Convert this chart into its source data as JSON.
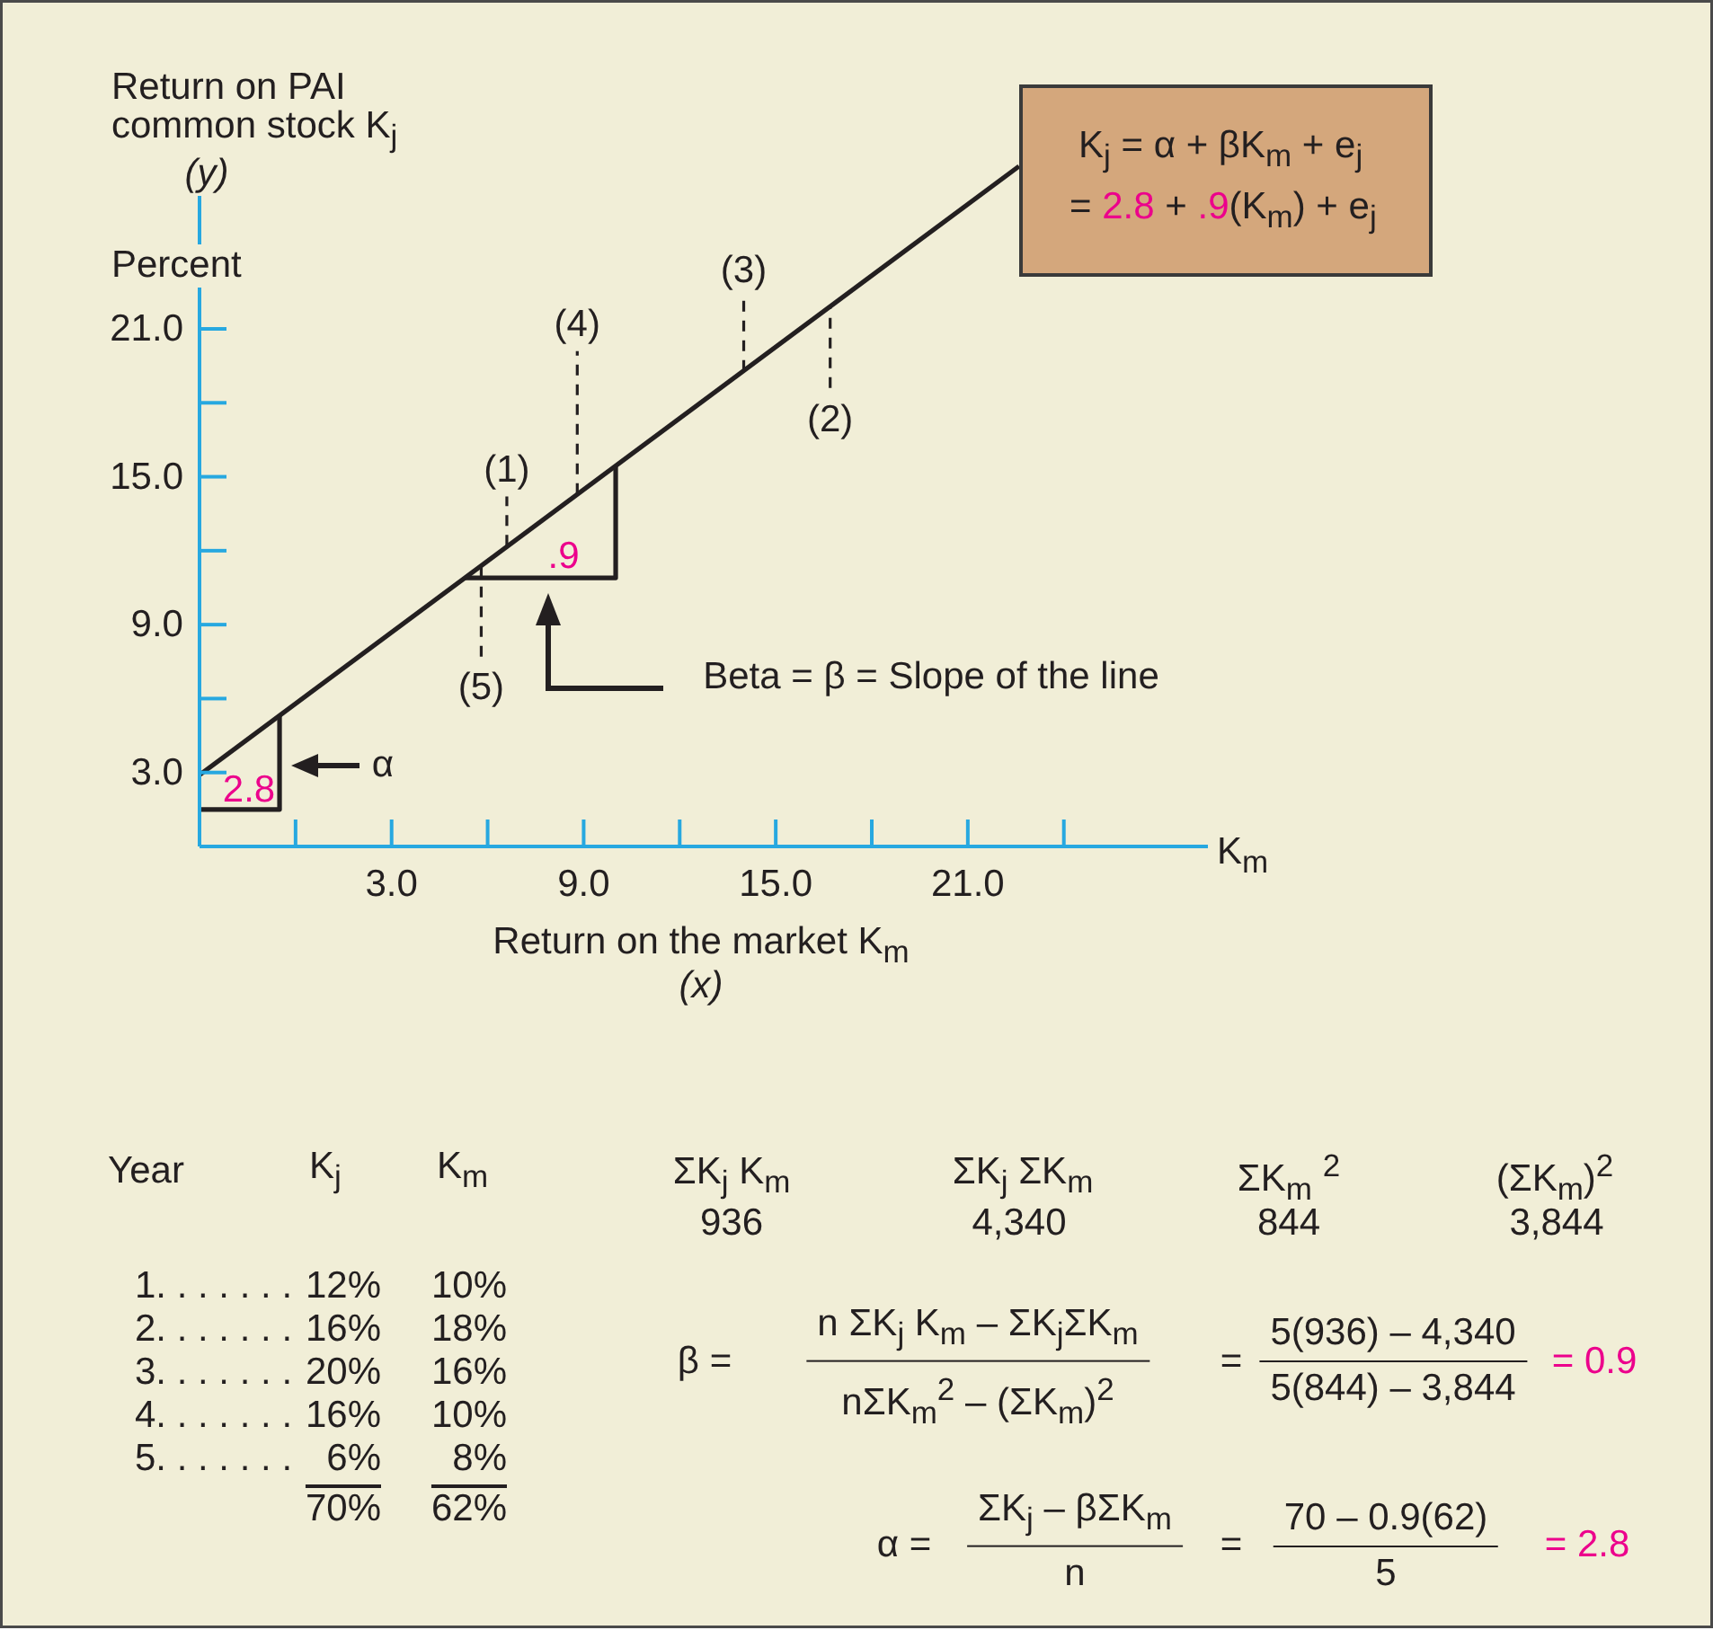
{
  "chart_data": {
    "type": "line",
    "xlabel": "Return on the market K$_{m}$\n(x)",
    "ylabel": "Return on PAI\ncommon stock K$_{j}$\n(y)",
    "xlim": [
      -3,
      28.5
    ],
    "ylim": [
      0,
      28
    ],
    "xticks": [
      {
        "value": 0,
        "label": null
      },
      {
        "value": 3,
        "label": "3.0"
      },
      {
        "value": 6,
        "label": null
      },
      {
        "value": 9,
        "label": "9.0"
      },
      {
        "value": 12,
        "label": null
      },
      {
        "value": 15,
        "label": "15.0"
      },
      {
        "value": 18,
        "label": null
      },
      {
        "value": 21,
        "label": "21.0"
      },
      {
        "value": 24,
        "label": null
      }
    ],
    "yticks": [
      {
        "value": 3,
        "label": "3.0"
      },
      {
        "value": 6,
        "label": null
      },
      {
        "value": 9,
        "label": "9.0"
      },
      {
        "value": 12,
        "label": null
      },
      {
        "value": 15,
        "label": "15.0"
      },
      {
        "value": 18,
        "label": null
      },
      {
        "value": 21,
        "label": "21.0"
      }
    ],
    "series": [
      {
        "color": "#231f20",
        "x": [
          -3,
          22.6
        ],
        "values": [
          2.9,
          27.6
        ]
      },
      {
        "color": "#231f20",
        "x": [
          -3,
          -0.5,
          -0.5
        ],
        "values": [
          1.5,
          1.5,
          5.3
        ]
      },
      {
        "color": "#231f20",
        "x": [
          5.3,
          10.0,
          10.0
        ],
        "values": [
          10.9,
          10.9,
          15.4
        ]
      },
      {
        "color": "#231f20",
        "line_style": "dashed",
        "x": [
          6.6,
          6.6
        ],
        "values": [
          12.2,
          14.2
        ]
      },
      {
        "color": "#231f20",
        "line_style": "dashed",
        "x": [
          16.7,
          16.7
        ],
        "values": [
          18.6,
          21.9
        ]
      },
      {
        "color": "#231f20",
        "line_style": "dashed",
        "x": [
          14.0,
          14.0
        ],
        "values": [
          19.3,
          22.3
        ]
      },
      {
        "color": "#231f20",
        "line_style": "dashed",
        "x": [
          8.8,
          8.8
        ],
        "values": [
          14.3,
          20.1
        ]
      },
      {
        "color": "#231f20",
        "line_style": "dashed",
        "x": [
          5.8,
          5.8
        ],
        "values": [
          7.7,
          11.4
        ]
      }
    ],
    "annotations": [
      {
        "text": "(1)",
        "x": 6.6,
        "y": 14.2
      },
      {
        "text": "(2)",
        "x": 16.7,
        "y": 18.6
      },
      {
        "text": "(3)",
        "x": 14.0,
        "y": 22.3
      },
      {
        "text": "(4)",
        "x": 8.8,
        "y": 20.1
      },
      {
        "text": "(5)",
        "x": 5.8,
        "y": 7.7
      },
      {
        "text": "2.8",
        "x": -0.5,
        "y": 1.5
      },
      {
        "text": ".9",
        "x": 10.0,
        "y": 10.9
      },
      "α",
      "Beta = β = Slope of the line",
      "Percent",
      "K$_{m}$",
      "K$_{j}$ = α + βK$_{m}$ + e$_{j}$",
      "=",
      "2.8",
      "+",
      ".9",
      "(K$_{m}$) + e$_{j}$",
      "Year",
      "K$_{j}$",
      "K$_{m}$",
      "1. . . . . . .",
      "12%",
      "10%",
      "2. . . . . . .",
      "16%",
      "18%",
      "3. . . . . . .",
      "20%",
      "16%",
      "4. . . . . . .",
      "16%",
      "10%",
      "5. . . . . . .",
      "6%",
      "8%",
      "70%",
      "62%",
      "ΣK$_{j}$ K$_{m}$",
      "936",
      "ΣK$_{j}$ ΣK$_{m}$",
      "4,340",
      "ΣK$_{m}$ $^{2}$",
      "844",
      "(ΣK$_{m}$)$^{2}$",
      "3,844",
      "β =",
      "n ΣK$_{j}$ K$_{m}$ – ΣK$_{j}$ΣK$_{m}$",
      "nΣK$_{m}$$^{2}$ – (ΣK$_{m}$)$^{2}$",
      "=",
      "5(936) – 4,340",
      "5(844) – 3,844",
      "= 0.9",
      "α =",
      "ΣK$_{j}$ – βΣK$_{m}$",
      "n",
      "=",
      "70 – 0.9(62)",
      "5",
      "= 2.8"
    ]
  }
}
